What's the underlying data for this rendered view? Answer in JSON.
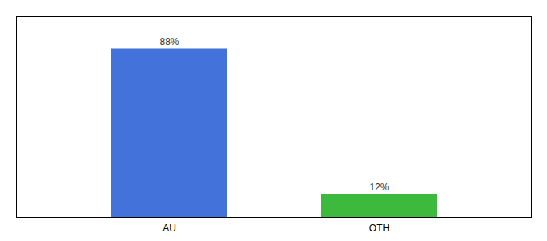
{
  "chart_data": {
    "type": "bar",
    "categories": [
      "AU",
      "OTH"
    ],
    "values": [
      88,
      12
    ],
    "value_labels": [
      "88%",
      "12%"
    ],
    "colors": [
      "#4472db",
      "#3dba3d"
    ],
    "ylim": [
      0,
      105
    ],
    "yticks": [],
    "data_labels": true,
    "tick_labels": "x",
    "grid": false
  }
}
